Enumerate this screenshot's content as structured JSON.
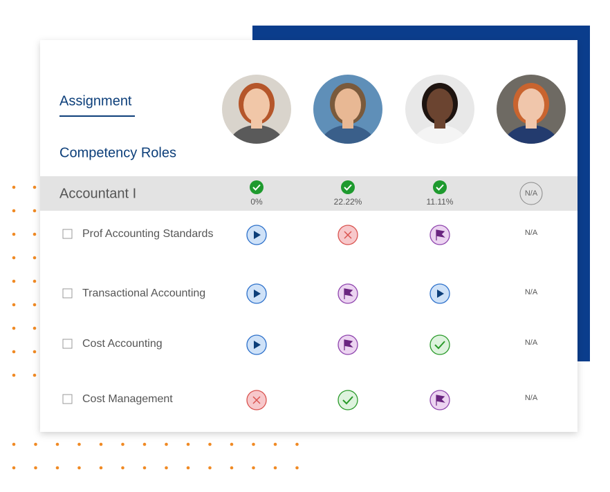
{
  "tabs": {
    "assignment": "Assignment",
    "competency_roles": "Competency Roles"
  },
  "role": {
    "name": "Accountant I",
    "summary": [
      {
        "icon": "check",
        "label": "0%"
      },
      {
        "icon": "check",
        "label": "22.22%"
      },
      {
        "icon": "check",
        "label": "11.11%"
      },
      {
        "label": "N/A"
      }
    ]
  },
  "competencies": [
    {
      "name": "Prof Accounting Standards",
      "cells": [
        {
          "icon": "play"
        },
        {
          "icon": "x"
        },
        {
          "icon": "flag"
        },
        {
          "label": "N/A"
        }
      ]
    },
    {
      "name": "Transactional Accounting",
      "cells": [
        {
          "icon": "play"
        },
        {
          "icon": "flag"
        },
        {
          "icon": "play"
        },
        {
          "label": "N/A"
        }
      ]
    },
    {
      "name": "Cost Accounting",
      "cells": [
        {
          "icon": "play"
        },
        {
          "icon": "flag"
        },
        {
          "icon": "check"
        },
        {
          "label": "N/A"
        }
      ]
    },
    {
      "name": "Cost Management",
      "cells": [
        {
          "icon": "x"
        },
        {
          "icon": "check"
        },
        {
          "icon": "flag"
        },
        {
          "label": "N/A"
        }
      ]
    }
  ]
}
